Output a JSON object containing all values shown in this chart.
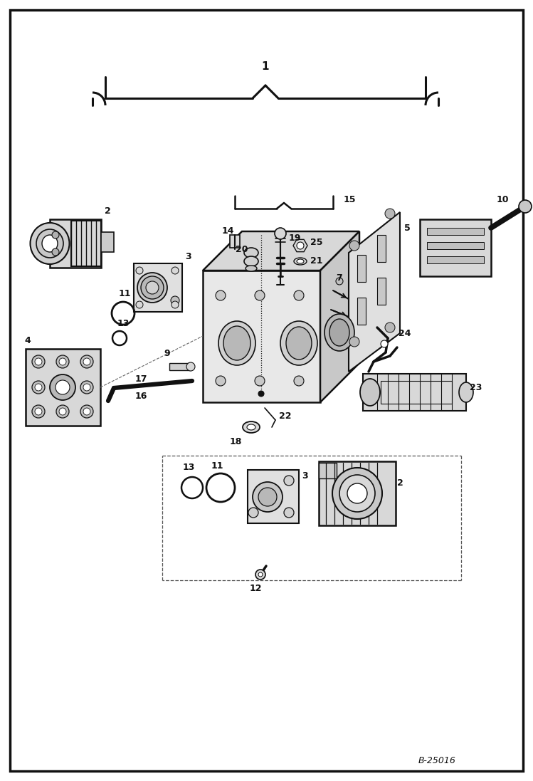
{
  "bg": "#ffffff",
  "lc": "#111111",
  "fig_w": 7.49,
  "fig_h": 10.97,
  "dpi": 100,
  "border_code": "B-25016",
  "gray1": "#c8c8c8",
  "gray2": "#e0e0e0",
  "gray3": "#aaaaaa",
  "gray4": "#d4d4d4"
}
